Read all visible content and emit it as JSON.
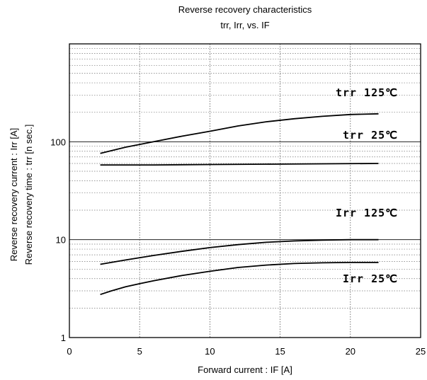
{
  "chart_data": {
    "type": "line",
    "title": "Reverse recovery characteristics",
    "subtitle": "trr,  Irr,  vs.  IF",
    "xlabel": "Forward current  :  IF [A]",
    "ylabel_lines": [
      "Reverse recovery current  :  Irr [A]",
      "Reverse recovery  time  :  trr [n sec.]"
    ],
    "xlim": [
      0,
      25
    ],
    "ylim": [
      1,
      1000
    ],
    "yscale": "log",
    "x_ticks": [
      "0",
      "5",
      "10",
      "15",
      "20",
      "25"
    ],
    "y_ticks": [
      "1",
      "10",
      "100"
    ],
    "grid": true,
    "series": [
      {
        "name": "trr 125℃",
        "x": [
          2.2,
          4,
          6,
          8,
          10,
          12,
          14,
          16,
          18,
          20,
          22
        ],
        "y": [
          76,
          88,
          100,
          114,
          128,
          145,
          160,
          172,
          182,
          190,
          193
        ]
      },
      {
        "name": "trr 25℃",
        "x": [
          2.2,
          6,
          10,
          14,
          18,
          22
        ],
        "y": [
          58,
          58,
          58.5,
          59,
          59.5,
          60
        ]
      },
      {
        "name": "Irr 125℃",
        "x": [
          2.2,
          4,
          6,
          8,
          10,
          12,
          14,
          16,
          18,
          20,
          22
        ],
        "y": [
          5.6,
          6.2,
          6.9,
          7.6,
          8.3,
          8.9,
          9.4,
          9.7,
          9.9,
          10.0,
          10.0
        ]
      },
      {
        "name": "Irr 25℃",
        "x": [
          2.2,
          3,
          4,
          5,
          6,
          8,
          10,
          12,
          14,
          16,
          18,
          20,
          22
        ],
        "y": [
          2.75,
          3.0,
          3.3,
          3.55,
          3.8,
          4.3,
          4.75,
          5.2,
          5.5,
          5.7,
          5.8,
          5.85,
          5.85
        ]
      }
    ]
  }
}
